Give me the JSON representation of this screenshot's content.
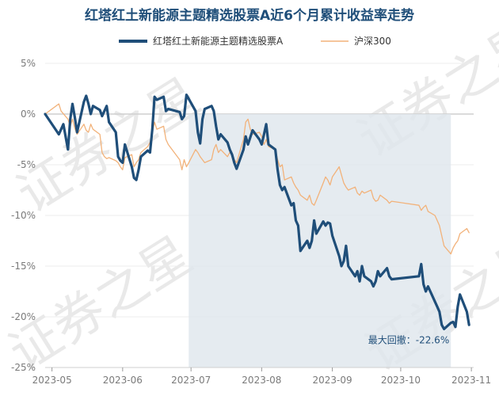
{
  "chart_data": {
    "type": "line",
    "title": "红塔红土新能源主题精选股票A近6个月累计收益率走势",
    "xlabel": "",
    "ylabel": "",
    "y_unit": "%",
    "ylim": [
      -25,
      5
    ],
    "y_ticks": [
      {
        "value": 5,
        "label": "5%"
      },
      {
        "value": 0,
        "label": "0%"
      },
      {
        "value": -5,
        "label": "-5%"
      },
      {
        "value": -10,
        "label": "-10%"
      },
      {
        "value": -15,
        "label": "-15%"
      },
      {
        "value": -20,
        "label": "-20%"
      },
      {
        "value": -25,
        "label": "-25%"
      }
    ],
    "x_ticks": [
      {
        "date": "2023-05-01",
        "label": "2023-05"
      },
      {
        "date": "2023-06-01",
        "label": "2023-06"
      },
      {
        "date": "2023-07-01",
        "label": "2023-07"
      },
      {
        "date": "2023-08-01",
        "label": "2023-08"
      },
      {
        "date": "2023-09-01",
        "label": "2023-09"
      },
      {
        "date": "2023-10-01",
        "label": "2023-10"
      },
      {
        "date": "2023-11-01",
        "label": "2023-11"
      }
    ],
    "xlim": [
      "2023-04-28",
      "2023-11-02"
    ],
    "grid": "horizontal",
    "legend": "top",
    "series": [
      {
        "name": "红塔红土新能源主题精选股票A",
        "color": "#1f4e79",
        "points": [
          [
            "2023-04-28",
            0.0
          ],
          [
            "2023-05-04",
            -2.0
          ],
          [
            "2023-05-06",
            -1.0
          ],
          [
            "2023-05-08",
            -3.5
          ],
          [
            "2023-05-09",
            -0.5
          ],
          [
            "2023-05-10",
            1.0
          ],
          [
            "2023-05-11",
            -0.3
          ],
          [
            "2023-05-12",
            -1.8
          ],
          [
            "2023-05-15",
            1.2
          ],
          [
            "2023-05-16",
            1.8
          ],
          [
            "2023-05-17",
            1.0
          ],
          [
            "2023-05-18",
            0.0
          ],
          [
            "2023-05-19",
            0.8
          ],
          [
            "2023-05-22",
            0.4
          ],
          [
            "2023-05-23",
            -0.2
          ],
          [
            "2023-05-24",
            0.3
          ],
          [
            "2023-05-25",
            0.8
          ],
          [
            "2023-05-26",
            -0.8
          ],
          [
            "2023-05-29",
            -1.8
          ],
          [
            "2023-05-30",
            -4.2
          ],
          [
            "2023-05-31",
            -4.6
          ],
          [
            "2023-06-01",
            -4.8
          ],
          [
            "2023-06-02",
            -3.0
          ],
          [
            "2023-06-05",
            -5.2
          ],
          [
            "2023-06-06",
            -6.3
          ],
          [
            "2023-06-07",
            -6.5
          ],
          [
            "2023-06-08",
            -5.5
          ],
          [
            "2023-06-09",
            -4.2
          ],
          [
            "2023-06-12",
            -3.6
          ],
          [
            "2023-06-13",
            -3.8
          ],
          [
            "2023-06-14",
            -1.5
          ],
          [
            "2023-06-15",
            1.7
          ],
          [
            "2023-06-16",
            1.4
          ],
          [
            "2023-06-19",
            1.7
          ],
          [
            "2023-06-20",
            0.3
          ],
          [
            "2023-06-21",
            0.5
          ],
          [
            "2023-06-26",
            0.2
          ],
          [
            "2023-06-27",
            -0.5
          ],
          [
            "2023-06-28",
            -0.2
          ],
          [
            "2023-06-29",
            1.9
          ],
          [
            "2023-06-30",
            1.5
          ],
          [
            "2023-07-03",
            0.3
          ],
          [
            "2023-07-04",
            -1.8
          ],
          [
            "2023-07-05",
            -2.9
          ],
          [
            "2023-07-06",
            -0.5
          ],
          [
            "2023-07-07",
            0.5
          ],
          [
            "2023-07-10",
            0.8
          ],
          [
            "2023-07-11",
            0.3
          ],
          [
            "2023-07-12",
            -1.2
          ],
          [
            "2023-07-13",
            -2.5
          ],
          [
            "2023-07-14",
            -2.0
          ],
          [
            "2023-07-17",
            -2.8
          ],
          [
            "2023-07-18",
            -3.5
          ],
          [
            "2023-07-19",
            -4.0
          ],
          [
            "2023-07-20",
            -4.8
          ],
          [
            "2023-07-21",
            -5.4
          ],
          [
            "2023-07-24",
            -3.5
          ],
          [
            "2023-07-25",
            -2.2
          ],
          [
            "2023-07-26",
            -3.0
          ],
          [
            "2023-07-27",
            -2.3
          ],
          [
            "2023-07-28",
            -1.6
          ],
          [
            "2023-07-31",
            -2.5
          ],
          [
            "2023-08-01",
            -3.0
          ],
          [
            "2023-08-02",
            -2.0
          ],
          [
            "2023-08-03",
            -1.0
          ],
          [
            "2023-08-04",
            -3.0
          ],
          [
            "2023-08-07",
            -3.5
          ],
          [
            "2023-08-08",
            -5.5
          ],
          [
            "2023-08-09",
            -7.0
          ],
          [
            "2023-08-10",
            -7.5
          ],
          [
            "2023-08-11",
            -7.2
          ],
          [
            "2023-08-14",
            -9.0
          ],
          [
            "2023-08-15",
            -8.8
          ],
          [
            "2023-08-16",
            -10.5
          ],
          [
            "2023-08-17",
            -11.0
          ],
          [
            "2023-08-18",
            -13.5
          ],
          [
            "2023-08-21",
            -12.5
          ],
          [
            "2023-08-22",
            -13.2
          ],
          [
            "2023-08-23",
            -12.5
          ],
          [
            "2023-08-24",
            -10.5
          ],
          [
            "2023-08-25",
            -11.8
          ],
          [
            "2023-08-28",
            -10.6
          ],
          [
            "2023-08-29",
            -11.0
          ],
          [
            "2023-08-30",
            -10.7
          ],
          [
            "2023-08-31",
            -10.8
          ],
          [
            "2023-09-01",
            -12.0
          ],
          [
            "2023-09-04",
            -14.0
          ],
          [
            "2023-09-05",
            -15.0
          ],
          [
            "2023-09-06",
            -14.5
          ],
          [
            "2023-09-07",
            -13.0
          ],
          [
            "2023-09-08",
            -15.0
          ],
          [
            "2023-09-11",
            -16.0
          ],
          [
            "2023-09-12",
            -15.5
          ],
          [
            "2023-09-13",
            -16.5
          ],
          [
            "2023-09-14",
            -15.0
          ],
          [
            "2023-09-15",
            -16.0
          ],
          [
            "2023-09-18",
            -16.5
          ],
          [
            "2023-09-19",
            -17.0
          ],
          [
            "2023-09-20",
            -16.5
          ],
          [
            "2023-09-21",
            -15.5
          ],
          [
            "2023-09-22",
            -16.0
          ],
          [
            "2023-09-25",
            -15.2
          ],
          [
            "2023-09-26",
            -16.0
          ],
          [
            "2023-09-27",
            -16.3
          ],
          [
            "2023-10-09",
            -16.0
          ],
          [
            "2023-10-10",
            -14.8
          ],
          [
            "2023-10-11",
            -16.8
          ],
          [
            "2023-10-12",
            -17.5
          ],
          [
            "2023-10-13",
            -17.0
          ],
          [
            "2023-10-16",
            -18.5
          ],
          [
            "2023-10-17",
            -19.0
          ],
          [
            "2023-10-18",
            -19.5
          ],
          [
            "2023-10-19",
            -20.8
          ],
          [
            "2023-10-20",
            -21.2
          ],
          [
            "2023-10-23",
            -20.6
          ],
          [
            "2023-10-24",
            -20.5
          ],
          [
            "2023-10-25",
            -21.0
          ],
          [
            "2023-10-26",
            -19.0
          ],
          [
            "2023-10-27",
            -17.8
          ],
          [
            "2023-10-30",
            -19.5
          ],
          [
            "2023-10-31",
            -20.8
          ]
        ]
      },
      {
        "name": "沪深300",
        "color": "#f2b27a",
        "points": [
          [
            "2023-04-28",
            0.0
          ],
          [
            "2023-05-04",
            1.0
          ],
          [
            "2023-05-05",
            0.3
          ],
          [
            "2023-05-08",
            -0.5
          ],
          [
            "2023-05-09",
            -1.2
          ],
          [
            "2023-05-10",
            -0.5
          ],
          [
            "2023-05-11",
            -1.4
          ],
          [
            "2023-05-12",
            -2.0
          ],
          [
            "2023-05-15",
            -1.0
          ],
          [
            "2023-05-16",
            -1.6
          ],
          [
            "2023-05-17",
            -1.8
          ],
          [
            "2023-05-18",
            -1.0
          ],
          [
            "2023-05-19",
            -1.5
          ],
          [
            "2023-05-22",
            -2.0
          ],
          [
            "2023-05-23",
            -3.8
          ],
          [
            "2023-05-24",
            -4.2
          ],
          [
            "2023-05-25",
            -4.4
          ],
          [
            "2023-05-26",
            -4.3
          ],
          [
            "2023-05-29",
            -4.6
          ],
          [
            "2023-05-30",
            -4.8
          ],
          [
            "2023-05-31",
            -5.2
          ],
          [
            "2023-06-01",
            -5.5
          ],
          [
            "2023-06-02",
            -4.3
          ],
          [
            "2023-06-05",
            -4.0
          ],
          [
            "2023-06-06",
            -5.2
          ],
          [
            "2023-06-07",
            -4.8
          ],
          [
            "2023-06-08",
            -4.5
          ],
          [
            "2023-06-09",
            -3.8
          ],
          [
            "2023-06-12",
            -3.2
          ],
          [
            "2023-06-13",
            -2.8
          ],
          [
            "2023-06-14",
            -1.8
          ],
          [
            "2023-06-15",
            -0.8
          ],
          [
            "2023-06-16",
            -1.5
          ],
          [
            "2023-06-19",
            -1.2
          ],
          [
            "2023-06-20",
            -2.5
          ],
          [
            "2023-06-21",
            -3.0
          ],
          [
            "2023-06-26",
            -4.5
          ],
          [
            "2023-06-27",
            -5.5
          ],
          [
            "2023-06-28",
            -4.5
          ],
          [
            "2023-06-29",
            -5.2
          ],
          [
            "2023-06-30",
            -4.8
          ],
          [
            "2023-07-03",
            -3.5
          ],
          [
            "2023-07-04",
            -3.8
          ],
          [
            "2023-07-05",
            -4.2
          ],
          [
            "2023-07-06",
            -4.5
          ],
          [
            "2023-07-07",
            -4.8
          ],
          [
            "2023-07-10",
            -4.5
          ],
          [
            "2023-07-11",
            -3.5
          ],
          [
            "2023-07-12",
            -3.0
          ],
          [
            "2023-07-13",
            -3.8
          ],
          [
            "2023-07-14",
            -3.5
          ],
          [
            "2023-07-17",
            -4.2
          ],
          [
            "2023-07-18",
            -3.8
          ],
          [
            "2023-07-19",
            -4.0
          ],
          [
            "2023-07-20",
            -4.5
          ],
          [
            "2023-07-21",
            -4.8
          ],
          [
            "2023-07-24",
            -2.5
          ],
          [
            "2023-07-25",
            -0.8
          ],
          [
            "2023-07-26",
            -0.5
          ],
          [
            "2023-07-27",
            -1.5
          ],
          [
            "2023-07-28",
            -2.0
          ],
          [
            "2023-07-31",
            -1.8
          ],
          [
            "2023-08-01",
            -2.2
          ],
          [
            "2023-08-02",
            -3.0
          ],
          [
            "2023-08-03",
            -2.5
          ],
          [
            "2023-08-04",
            -3.2
          ],
          [
            "2023-08-07",
            -3.5
          ],
          [
            "2023-08-08",
            -4.5
          ],
          [
            "2023-08-09",
            -5.2
          ],
          [
            "2023-08-10",
            -5.0
          ],
          [
            "2023-08-11",
            -6.5
          ],
          [
            "2023-08-14",
            -6.2
          ],
          [
            "2023-08-15",
            -6.8
          ],
          [
            "2023-08-16",
            -7.2
          ],
          [
            "2023-08-17",
            -7.5
          ],
          [
            "2023-08-18",
            -8.0
          ],
          [
            "2023-08-21",
            -8.5
          ],
          [
            "2023-08-22",
            -8.0
          ],
          [
            "2023-08-23",
            -8.8
          ],
          [
            "2023-08-24",
            -9.0
          ],
          [
            "2023-08-25",
            -8.5
          ],
          [
            "2023-08-28",
            -6.8
          ],
          [
            "2023-08-29",
            -6.2
          ],
          [
            "2023-08-30",
            -6.5
          ],
          [
            "2023-08-31",
            -7.0
          ],
          [
            "2023-09-01",
            -6.2
          ],
          [
            "2023-09-04",
            -5.2
          ],
          [
            "2023-09-05",
            -6.0
          ],
          [
            "2023-09-06",
            -6.8
          ],
          [
            "2023-09-07",
            -7.2
          ],
          [
            "2023-09-08",
            -7.5
          ],
          [
            "2023-09-11",
            -7.2
          ],
          [
            "2023-09-12",
            -7.8
          ],
          [
            "2023-09-13",
            -8.0
          ],
          [
            "2023-09-14",
            -7.6
          ],
          [
            "2023-09-15",
            -7.8
          ],
          [
            "2023-09-18",
            -7.5
          ],
          [
            "2023-09-19",
            -8.3
          ],
          [
            "2023-09-20",
            -8.6
          ],
          [
            "2023-09-21",
            -8.5
          ],
          [
            "2023-09-22",
            -8.0
          ],
          [
            "2023-09-25",
            -8.5
          ],
          [
            "2023-09-26",
            -8.8
          ],
          [
            "2023-09-27",
            -8.6
          ],
          [
            "2023-10-09",
            -9.0
          ],
          [
            "2023-10-10",
            -9.5
          ],
          [
            "2023-10-11",
            -9.2
          ],
          [
            "2023-10-12",
            -9.0
          ],
          [
            "2023-10-13",
            -9.6
          ],
          [
            "2023-10-16",
            -10.0
          ],
          [
            "2023-10-17",
            -10.5
          ],
          [
            "2023-10-18",
            -11.0
          ],
          [
            "2023-10-19",
            -12.0
          ],
          [
            "2023-10-20",
            -13.0
          ],
          [
            "2023-10-23",
            -13.8
          ],
          [
            "2023-10-24",
            -13.2
          ],
          [
            "2023-10-25",
            -12.8
          ],
          [
            "2023-10-26",
            -12.5
          ],
          [
            "2023-10-27",
            -11.8
          ],
          [
            "2023-10-30",
            -11.3
          ],
          [
            "2023-10-31",
            -11.7
          ]
        ]
      }
    ],
    "shaded_region": {
      "from": "2023-06-30",
      "to": "2023-10-23"
    },
    "annotation": {
      "text": "最大回撤：-22.6%",
      "date": "2023-10-23",
      "value": -21.2
    }
  },
  "watermark": "证券之星"
}
